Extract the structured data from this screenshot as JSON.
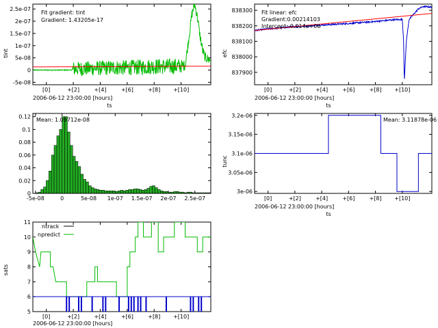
{
  "chart_data": [
    {
      "id": "tint",
      "type": "line",
      "xlabel": "ts",
      "ylabel": "tint",
      "x_origin_label": "2006-06-12 23:00:00 [hours]",
      "x_range_hours": [
        -1,
        12.2
      ],
      "x_ticks": [
        {
          "v": 0,
          "label": "[0]"
        },
        {
          "v": 2,
          "label": "+[2]"
        },
        {
          "v": 4,
          "label": "+[4]"
        },
        {
          "v": 6,
          "label": "+[6]"
        },
        {
          "v": 8,
          "label": "+[8]"
        },
        {
          "v": 10,
          "label": "+[10]"
        }
      ],
      "ylim": [
        -6e-08,
        2.7e-07
      ],
      "y_ticks": [
        {
          "v": -5e-08,
          "label": "-5e-08"
        },
        {
          "v": 0,
          "label": "0"
        },
        {
          "v": 5e-08,
          "label": "5e-08"
        },
        {
          "v": 1e-07,
          "label": "1e-07"
        },
        {
          "v": 1.5e-07,
          "label": "1.5e-07"
        },
        {
          "v": 2e-07,
          "label": "2e-07"
        },
        {
          "v": 2.5e-07,
          "label": "2.5e-07"
        }
      ],
      "annotations": [
        "Fit gradient: tint",
        "Gradient: 1.43205e-17"
      ],
      "series": [
        {
          "color": "#00bb00",
          "points": [
            [
              -1,
              0
            ],
            [
              0,
              0
            ],
            [
              1,
              0
            ],
            [
              1.9,
              0
            ],
            [
              2,
              5e-09
            ],
            [
              3,
              6e-09
            ],
            [
              4,
              8e-09
            ],
            [
              5,
              1e-08
            ],
            [
              6,
              1e-08
            ],
            [
              7,
              1.2e-08
            ],
            [
              8,
              1.5e-08
            ],
            [
              9,
              1.5e-08
            ],
            [
              10,
              1.6e-08
            ],
            [
              10.3,
              2e-08
            ],
            [
              10.5,
              1e-07
            ],
            [
              10.8,
              2.3e-07
            ],
            [
              11,
              2.7e-07
            ],
            [
              11.2,
              2.2e-07
            ],
            [
              11.4,
              1.4e-07
            ],
            [
              11.6,
              8e-08
            ],
            [
              11.8,
              5e-08
            ],
            [
              12.2,
              4e-08
            ]
          ],
          "noise_amplitude": [
            [
              -1,
              2e-09
            ],
            [
              1.9,
              2e-09
            ],
            [
              2,
              3e-08
            ],
            [
              9.8,
              3.3e-08
            ],
            [
              10.3,
              2e-08
            ],
            [
              12.2,
              2e-08
            ]
          ]
        },
        {
          "color": "#ff0000",
          "points": [
            [
              -1,
              1.3e-08
            ],
            [
              12.2,
              1.6e-08
            ]
          ]
        }
      ]
    },
    {
      "id": "efc",
      "type": "line",
      "xlabel": "ts",
      "ylabel": "efc",
      "x_origin_label": "2006-06-12 23:00:00 [hours]",
      "x_range_hours": [
        -1,
        12.2
      ],
      "x_ticks": [
        {
          "v": 0,
          "label": "[0]"
        },
        {
          "v": 2,
          "label": "+[2]"
        },
        {
          "v": 4,
          "label": "+[4]"
        },
        {
          "v": 6,
          "label": "+[6]"
        },
        {
          "v": 8,
          "label": "+[8]"
        },
        {
          "v": 10,
          "label": "+[10]"
        }
      ],
      "ylim": [
        837820,
        838340
      ],
      "y_ticks": [
        {
          "v": 837900,
          "label": "837900"
        },
        {
          "v": 838000,
          "label": "838000"
        },
        {
          "v": 838100,
          "label": "838100"
        },
        {
          "v": 838200,
          "label": "838200"
        },
        {
          "v": 838300,
          "label": "838300"
        }
      ],
      "annotations": [
        "Fit linear: efc",
        "Gradient:0.00214103",
        "Intercept:-0.014e+06"
      ],
      "series": [
        {
          "color": "#0000cc",
          "points": [
            [
              -1,
              838170
            ],
            [
              0,
              838180
            ],
            [
              2,
              838195
            ],
            [
              4,
              838205
            ],
            [
              6,
              838215
            ],
            [
              8,
              838228
            ],
            [
              9.5,
              838240
            ],
            [
              10,
              838240
            ],
            [
              10.1,
              838100
            ],
            [
              10.15,
              837840
            ],
            [
              10.3,
              838100
            ],
            [
              10.5,
              838240
            ],
            [
              10.8,
              838270
            ],
            [
              11.2,
              838310
            ],
            [
              11.6,
              838325
            ],
            [
              12.2,
              838320
            ]
          ],
          "noise_amplitude": [
            [
              -1,
              5
            ],
            [
              9.9,
              5
            ],
            [
              10.5,
              5
            ],
            [
              12.2,
              5
            ]
          ]
        },
        {
          "color": "#ff0000",
          "points": [
            [
              -1,
              838170
            ],
            [
              12.2,
              838280
            ]
          ]
        }
      ]
    },
    {
      "id": "hist",
      "type": "bar",
      "annotations": [
        "Mean: 1.09712e-08"
      ],
      "xlim": [
        -5.5e-08,
        2.8e-07
      ],
      "bin_start": -5e-08,
      "bin_width": 5e-09,
      "values": [
        0.001,
        0.002,
        0.006,
        0.01,
        0.02,
        0.035,
        0.06,
        0.075,
        0.09,
        0.1,
        0.12,
        0.12,
        0.096,
        0.075,
        0.058,
        0.05,
        0.042,
        0.03,
        0.022,
        0.018,
        0.012,
        0.009,
        0.007,
        0.006,
        0.005,
        0.005,
        0.004,
        0.004,
        0.004,
        0.004,
        0.003,
        0.004,
        0.005,
        0.004,
        0.005,
        0.006,
        0.006,
        0.007,
        0.007,
        0.006,
        0.005,
        0.006,
        0.008,
        0.011,
        0.012,
        0.009,
        0.006,
        0.004,
        0.003,
        0.003,
        0.002,
        0.002,
        0.003,
        0.003,
        0.002,
        0.002,
        0.001,
        0.002,
        0.002,
        0.001,
        0.001,
        0.001,
        0.001,
        0.001,
        0.001,
        0.001
      ],
      "ylim": [
        0,
        0.125
      ],
      "x_ticks": [
        {
          "v": -5e-08,
          "label": "-5e-08"
        },
        {
          "v": 0,
          "label": "0"
        },
        {
          "v": 5e-08,
          "label": "5e-08"
        },
        {
          "v": 1e-07,
          "label": "1e-07"
        },
        {
          "v": 1.5e-07,
          "label": "1.5e-07"
        },
        {
          "v": 2e-07,
          "label": "2e-07"
        },
        {
          "v": 2.5e-07,
          "label": "2.5e-07"
        }
      ],
      "y_ticks": [
        {
          "v": 0,
          "label": "0"
        },
        {
          "v": 0.02,
          "label": "0.02"
        },
        {
          "v": 0.04,
          "label": "0.04"
        },
        {
          "v": 0.06,
          "label": "0.06"
        },
        {
          "v": 0.08,
          "label": "0.08"
        },
        {
          "v": 0.1,
          "label": "0.1"
        },
        {
          "v": 0.12,
          "label": "0.12"
        }
      ],
      "bar_color": "#22aa22"
    },
    {
      "id": "tunc",
      "type": "line",
      "step": true,
      "xlabel": "ts",
      "ylabel": "tunc",
      "x_origin_label": "2006-06-12 23:00:00 [hours]",
      "x_range_hours": [
        -1,
        12.2
      ],
      "x_ticks": [
        {
          "v": 0,
          "label": "[0]"
        },
        {
          "v": 2,
          "label": "+[2]"
        },
        {
          "v": 4,
          "label": "+[4]"
        },
        {
          "v": 6,
          "label": "+[6]"
        },
        {
          "v": 8,
          "label": "+[8]"
        },
        {
          "v": 10,
          "label": "+[10]"
        }
      ],
      "ylim": [
        2.995e-06,
        3.205e-06
      ],
      "y_ticks": [
        {
          "v": 3e-06,
          "label": "3e-06"
        },
        {
          "v": 3.05e-06,
          "label": "3.05e-06"
        },
        {
          "v": 3.1e-06,
          "label": "3.1e-06"
        },
        {
          "v": 3.15e-06,
          "label": "3.15e-06"
        },
        {
          "v": 3.2e-06,
          "label": "3.2e-06"
        }
      ],
      "annotations": [
        "Mean: 3.11878e-06"
      ],
      "series": [
        {
          "color": "#0000cc",
          "points": [
            [
              -1,
              3.1e-06
            ],
            [
              4.5,
              3.1e-06
            ],
            [
              4.5,
              3.2e-06
            ],
            [
              8.4,
              3.2e-06
            ],
            [
              8.4,
              3.1e-06
            ],
            [
              9.6,
              3.1e-06
            ],
            [
              9.6,
              3e-06
            ],
            [
              11.2,
              3e-06
            ],
            [
              11.2,
              3.1e-06
            ],
            [
              12.2,
              3.1e-06
            ]
          ]
        }
      ]
    },
    {
      "id": "sats",
      "type": "line",
      "step": true,
      "xlabel": "",
      "ylabel": "sats",
      "x_origin_label": "2006-06-12 23:00:00 [hours]",
      "x_range_hours": [
        -1,
        12.2
      ],
      "x_ticks": [
        {
          "v": 0,
          "label": "[0]"
        },
        {
          "v": 2,
          "label": "+[2]"
        },
        {
          "v": 4,
          "label": "+[4]"
        },
        {
          "v": 6,
          "label": "+[6]"
        },
        {
          "v": 8,
          "label": "+[8]"
        },
        {
          "v": 10,
          "label": "+[10]"
        }
      ],
      "ylim": [
        5,
        11
      ],
      "y_ticks": [
        {
          "v": 5,
          "label": "5"
        },
        {
          "v": 6,
          "label": "6"
        },
        {
          "v": 7,
          "label": "7"
        },
        {
          "v": 8,
          "label": "8"
        },
        {
          "v": 9,
          "label": "9"
        },
        {
          "v": 10,
          "label": "10"
        },
        {
          "v": 11,
          "label": "11"
        }
      ],
      "legend": [
        {
          "name": "ntrack",
          "color": "#000000"
        },
        {
          "name": "npredict",
          "color": "#00bb00"
        }
      ],
      "series": [
        {
          "name": "npredict",
          "color": "#00bb00",
          "points": [
            [
              -1,
              10
            ],
            [
              -0.8,
              9
            ],
            [
              -0.5,
              8
            ],
            [
              -0.4,
              9
            ],
            [
              0.3,
              9
            ],
            [
              0.3,
              8
            ],
            [
              0.5,
              8
            ],
            [
              0.7,
              7
            ],
            [
              1.5,
              7
            ],
            [
              1.5,
              6
            ],
            [
              3,
              6
            ],
            [
              3,
              7
            ],
            [
              3.6,
              7
            ],
            [
              3.6,
              8
            ],
            [
              3.8,
              8
            ],
            [
              3.8,
              7
            ],
            [
              5.2,
              7
            ],
            [
              5.2,
              6
            ],
            [
              6.0,
              6
            ],
            [
              6.0,
              8
            ],
            [
              6.2,
              8
            ],
            [
              6.2,
              9
            ],
            [
              6.6,
              9
            ],
            [
              6.6,
              10
            ],
            [
              6.8,
              10
            ],
            [
              6.8,
              11
            ],
            [
              7.2,
              11
            ],
            [
              7.2,
              10
            ],
            [
              7.8,
              10
            ],
            [
              7.8,
              11
            ],
            [
              8.3,
              11
            ],
            [
              8.3,
              9
            ],
            [
              8.7,
              9
            ],
            [
              8.7,
              10
            ],
            [
              9.5,
              10
            ],
            [
              9.5,
              11
            ],
            [
              10.3,
              11
            ],
            [
              10.3,
              10
            ],
            [
              11.2,
              10
            ],
            [
              11.2,
              9
            ],
            [
              11.6,
              9
            ],
            [
              11.6,
              10
            ],
            [
              12.2,
              10
            ]
          ]
        },
        {
          "name": "ntrack",
          "color": "#0000cc",
          "points": [
            [
              -1,
              6
            ],
            [
              12.2,
              6
            ]
          ],
          "dips": [
            [
              1.5,
              5
            ],
            [
              1.7,
              5
            ],
            [
              2.4,
              5
            ],
            [
              2.6,
              5
            ],
            [
              3.4,
              5
            ],
            [
              4.2,
              5
            ],
            [
              4.4,
              5
            ],
            [
              5.4,
              5
            ],
            [
              6.1,
              5
            ],
            [
              6.3,
              5
            ],
            [
              6.5,
              5
            ],
            [
              6.8,
              5
            ],
            [
              7.0,
              5
            ],
            [
              7.4,
              5
            ],
            [
              8.9,
              5
            ],
            [
              10.7,
              5
            ],
            [
              10.9,
              5
            ],
            [
              11.3,
              5
            ],
            [
              11.5,
              5
            ]
          ]
        }
      ]
    }
  ]
}
